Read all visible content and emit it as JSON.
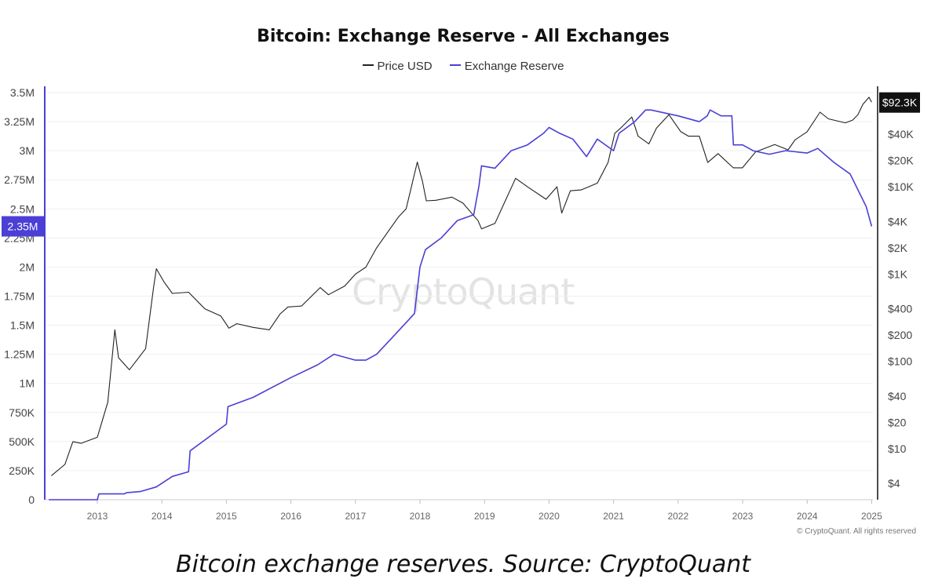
{
  "chart_data": {
    "type": "line",
    "title": "Bitcoin: Exchange Reserve - All Exchanges",
    "legend": {
      "placement": "top-center",
      "items": [
        {
          "label": "Price USD",
          "color": "#222222"
        },
        {
          "label": "Exchange Reserve",
          "color": "#4b3fd6"
        }
      ]
    },
    "x_axis": {
      "type": "date",
      "range": [
        "2012-04-01",
        "2025-01-01"
      ],
      "ticks": [
        "2013",
        "2014",
        "2015",
        "2016",
        "2017",
        "2018",
        "2019",
        "2020",
        "2021",
        "2022",
        "2023",
        "2024",
        "2025"
      ]
    },
    "y_left": {
      "label": "",
      "range": [
        0,
        3500000
      ],
      "ticks": [
        "0",
        "250K",
        "500K",
        "750K",
        "1M",
        "1.25M",
        "1.5M",
        "1.75M",
        "2M",
        "2.25M",
        "2.5M",
        "2.75M",
        "3M",
        "3.25M",
        "3.5M"
      ],
      "current_value_label": "2.35M",
      "current_value": 2350000
    },
    "y_right": {
      "label": "",
      "scale": "log",
      "range": [
        2.6,
        120000
      ],
      "ticks": [
        "$4",
        "$10",
        "$20",
        "$40",
        "$100",
        "$200",
        "$400",
        "$1K",
        "$2K",
        "$4K",
        "$10K",
        "$20K",
        "$40K"
      ],
      "tick_values": [
        4,
        10,
        20,
        40,
        100,
        200,
        400,
        1000,
        2000,
        4000,
        10000,
        20000,
        40000
      ],
      "current_value_label": "$92.3K",
      "current_value": 92300
    },
    "series": [
      {
        "name": "Price USD",
        "axis": "right",
        "color": "#222222",
        "x": [
          "2012-04-15",
          "2012-07-01",
          "2012-08-15",
          "2012-10-01",
          "2013-01-01",
          "2013-03-01",
          "2013-04-10",
          "2013-05-01",
          "2013-07-01",
          "2013-10-01",
          "2013-11-15",
          "2013-12-01",
          "2014-01-15",
          "2014-03-01",
          "2014-06-01",
          "2014-09-01",
          "2014-12-01",
          "2015-01-15",
          "2015-03-01",
          "2015-06-01",
          "2015-09-01",
          "2015-11-01",
          "2015-12-15",
          "2016-03-01",
          "2016-06-15",
          "2016-08-01",
          "2016-11-01",
          "2017-01-01",
          "2017-03-01",
          "2017-05-01",
          "2017-06-15",
          "2017-09-01",
          "2017-10-15",
          "2017-12-17",
          "2018-01-15",
          "2018-02-06",
          "2018-04-01",
          "2018-07-01",
          "2018-09-01",
          "2018-11-25",
          "2018-12-15",
          "2019-03-01",
          "2019-06-26",
          "2019-09-01",
          "2019-12-15",
          "2020-02-15",
          "2020-03-13",
          "2020-05-01",
          "2020-07-01",
          "2020-10-01",
          "2020-12-01",
          "2021-01-08",
          "2021-02-15",
          "2021-04-14",
          "2021-05-20",
          "2021-07-20",
          "2021-09-01",
          "2021-11-10",
          "2022-01-15",
          "2022-03-01",
          "2022-05-01",
          "2022-06-18",
          "2022-08-15",
          "2022-11-09",
          "2022-12-31",
          "2023-03-15",
          "2023-07-01",
          "2023-09-15",
          "2023-10-25",
          "2023-12-31",
          "2024-03-14",
          "2024-05-01",
          "2024-08-05",
          "2024-09-15",
          "2024-10-15",
          "2024-11-12",
          "2024-12-17",
          "2025-01-01"
        ],
        "y": [
          4.9,
          6.6,
          12,
          11.5,
          13.5,
          34,
          230,
          110,
          80,
          140,
          700,
          1150,
          800,
          600,
          620,
          400,
          330,
          240,
          270,
          245,
          230,
          350,
          420,
          430,
          700,
          580,
          730,
          1000,
          1200,
          2000,
          2700,
          4500,
          5600,
          19200,
          11500,
          6900,
          7000,
          7600,
          6500,
          4100,
          3300,
          3800,
          12500,
          10000,
          7200,
          10000,
          5000,
          9000,
          9200,
          11000,
          19000,
          41000,
          48000,
          63000,
          38000,
          31000,
          47000,
          67000,
          43000,
          38000,
          38000,
          19000,
          24000,
          16500,
          16500,
          25000,
          30500,
          26500,
          34500,
          42500,
          71500,
          60000,
          54000,
          58000,
          67000,
          88000,
          106000,
          93000
        ]
      },
      {
        "name": "Exchange Reserve",
        "axis": "left",
        "color": "#4b3fd6",
        "x": [
          "2012-04-01",
          "2013-01-01",
          "2013-01-10",
          "2013-06-01",
          "2013-06-15",
          "2013-09-01",
          "2013-12-01",
          "2014-03-01",
          "2014-06-01",
          "2014-06-10",
          "2015-01-01",
          "2015-01-10",
          "2015-06-01",
          "2016-01-01",
          "2016-06-01",
          "2016-09-01",
          "2017-01-01",
          "2017-03-01",
          "2017-05-01",
          "2017-08-01",
          "2017-12-01",
          "2018-01-01",
          "2018-02-01",
          "2018-05-01",
          "2018-08-01",
          "2018-11-01",
          "2018-12-01",
          "2018-12-15",
          "2019-03-01",
          "2019-06-01",
          "2019-09-01",
          "2019-12-01",
          "2020-01-01",
          "2020-03-01",
          "2020-05-15",
          "2020-08-01",
          "2020-10-01",
          "2021-01-01",
          "2021-02-01",
          "2021-05-01",
          "2021-07-01",
          "2021-08-01",
          "2022-01-01",
          "2022-05-01",
          "2022-06-15",
          "2022-07-01",
          "2022-09-01",
          "2022-11-01",
          "2022-11-10",
          "2023-01-01",
          "2023-03-01",
          "2023-06-01",
          "2023-09-01",
          "2024-01-01",
          "2024-03-01",
          "2024-06-01",
          "2024-09-01",
          "2024-12-01",
          "2025-01-01"
        ],
        "y": [
          0,
          0,
          50000,
          50000,
          60000,
          70000,
          110000,
          200000,
          240000,
          420000,
          650000,
          800000,
          880000,
          1050000,
          1160000,
          1250000,
          1200000,
          1200000,
          1250000,
          1400000,
          1600000,
          2000000,
          2150000,
          2250000,
          2400000,
          2450000,
          2700000,
          2870000,
          2850000,
          3000000,
          3050000,
          3150000,
          3200000,
          3150000,
          3100000,
          2950000,
          3100000,
          3000000,
          3150000,
          3250000,
          3350000,
          3350000,
          3300000,
          3250000,
          3300000,
          3350000,
          3300000,
          3300000,
          3050000,
          3050000,
          3000000,
          2970000,
          3000000,
          2980000,
          3020000,
          2900000,
          2800000,
          2520000,
          2350000
        ]
      }
    ]
  },
  "watermark": "CryptoQuant",
  "copyright": "© CryptoQuant. All rights reserved",
  "caption": "Bitcoin exchange reserves. Source: CryptoQuant"
}
